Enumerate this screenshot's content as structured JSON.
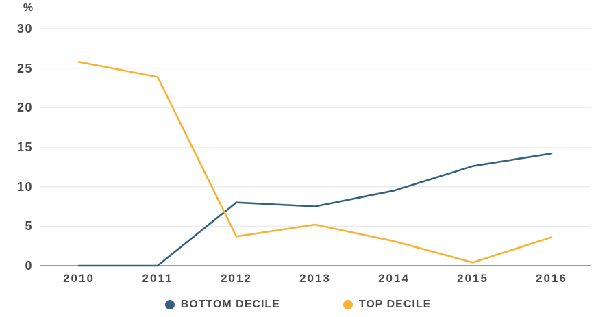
{
  "chart_data": {
    "type": "line",
    "title": "",
    "ylabel": "%",
    "xlabel": "",
    "x": [
      "2010",
      "2011",
      "2012",
      "2013",
      "2014",
      "2015",
      "2016"
    ],
    "series": [
      {
        "name": "BOTTOM DECILE",
        "color": "#35617E",
        "values": [
          0,
          0,
          8.0,
          7.5,
          9.5,
          12.6,
          14.2
        ]
      },
      {
        "name": "TOP DECILE",
        "color": "#F9B233",
        "values": [
          25.8,
          23.9,
          3.7,
          5.2,
          3.1,
          0.4,
          3.6
        ]
      }
    ],
    "ylim": [
      0,
      30
    ],
    "yticks": [
      0,
      5,
      10,
      15,
      20,
      25,
      30
    ],
    "grid": true,
    "grid_color": "#ececec",
    "axis_color": "#999999",
    "tick_text_color": "#4a4a4a",
    "legend_position": "bottom"
  }
}
